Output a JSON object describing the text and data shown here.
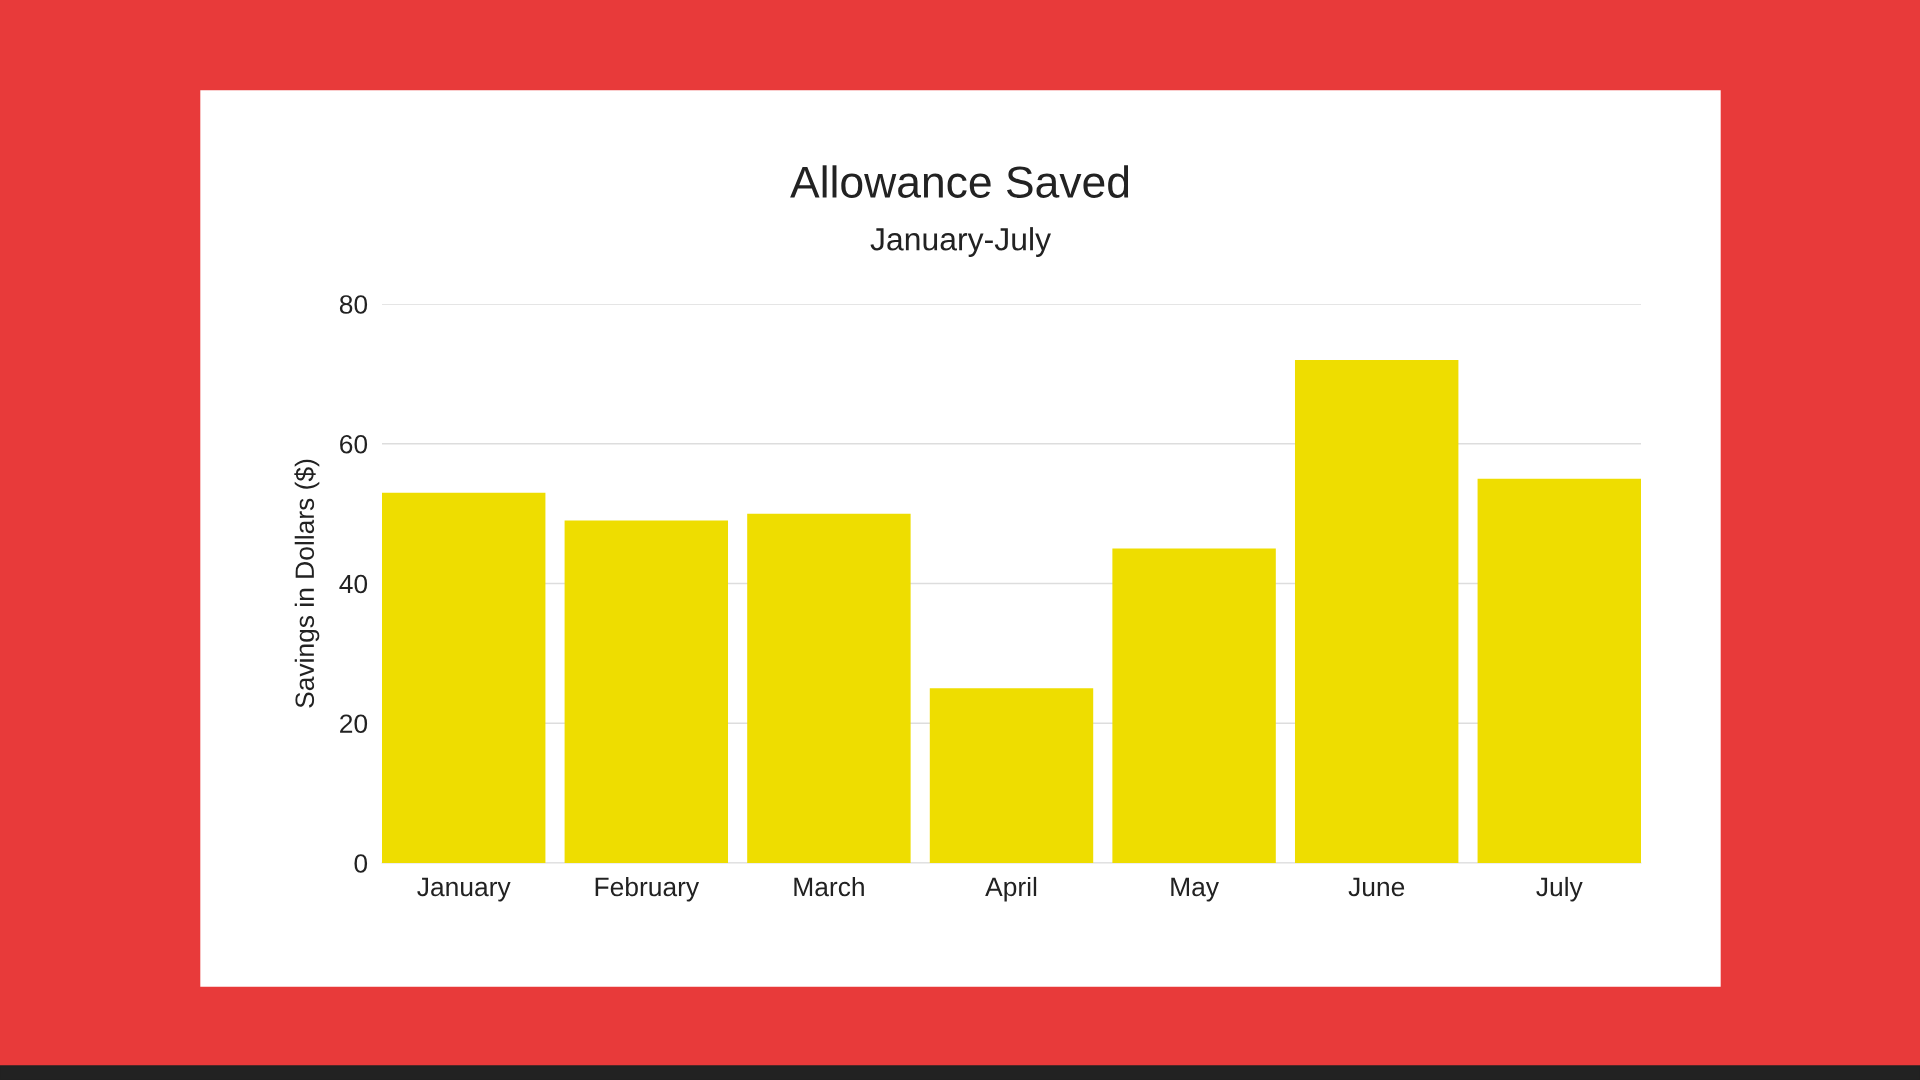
{
  "chart_data": {
    "type": "bar",
    "title": "Allowance Saved",
    "subtitle": "January-July",
    "ylabel": "Savings in Dollars ($)",
    "categories": [
      "January",
      "February",
      "March",
      "April",
      "May",
      "June",
      "July"
    ],
    "values": [
      53,
      49,
      50,
      25,
      45,
      72,
      55
    ],
    "color": "#eedd00",
    "ylim": [
      0,
      80
    ],
    "yticks": [
      0,
      20,
      40,
      60,
      80
    ],
    "grid": "y",
    "legend": false
  }
}
